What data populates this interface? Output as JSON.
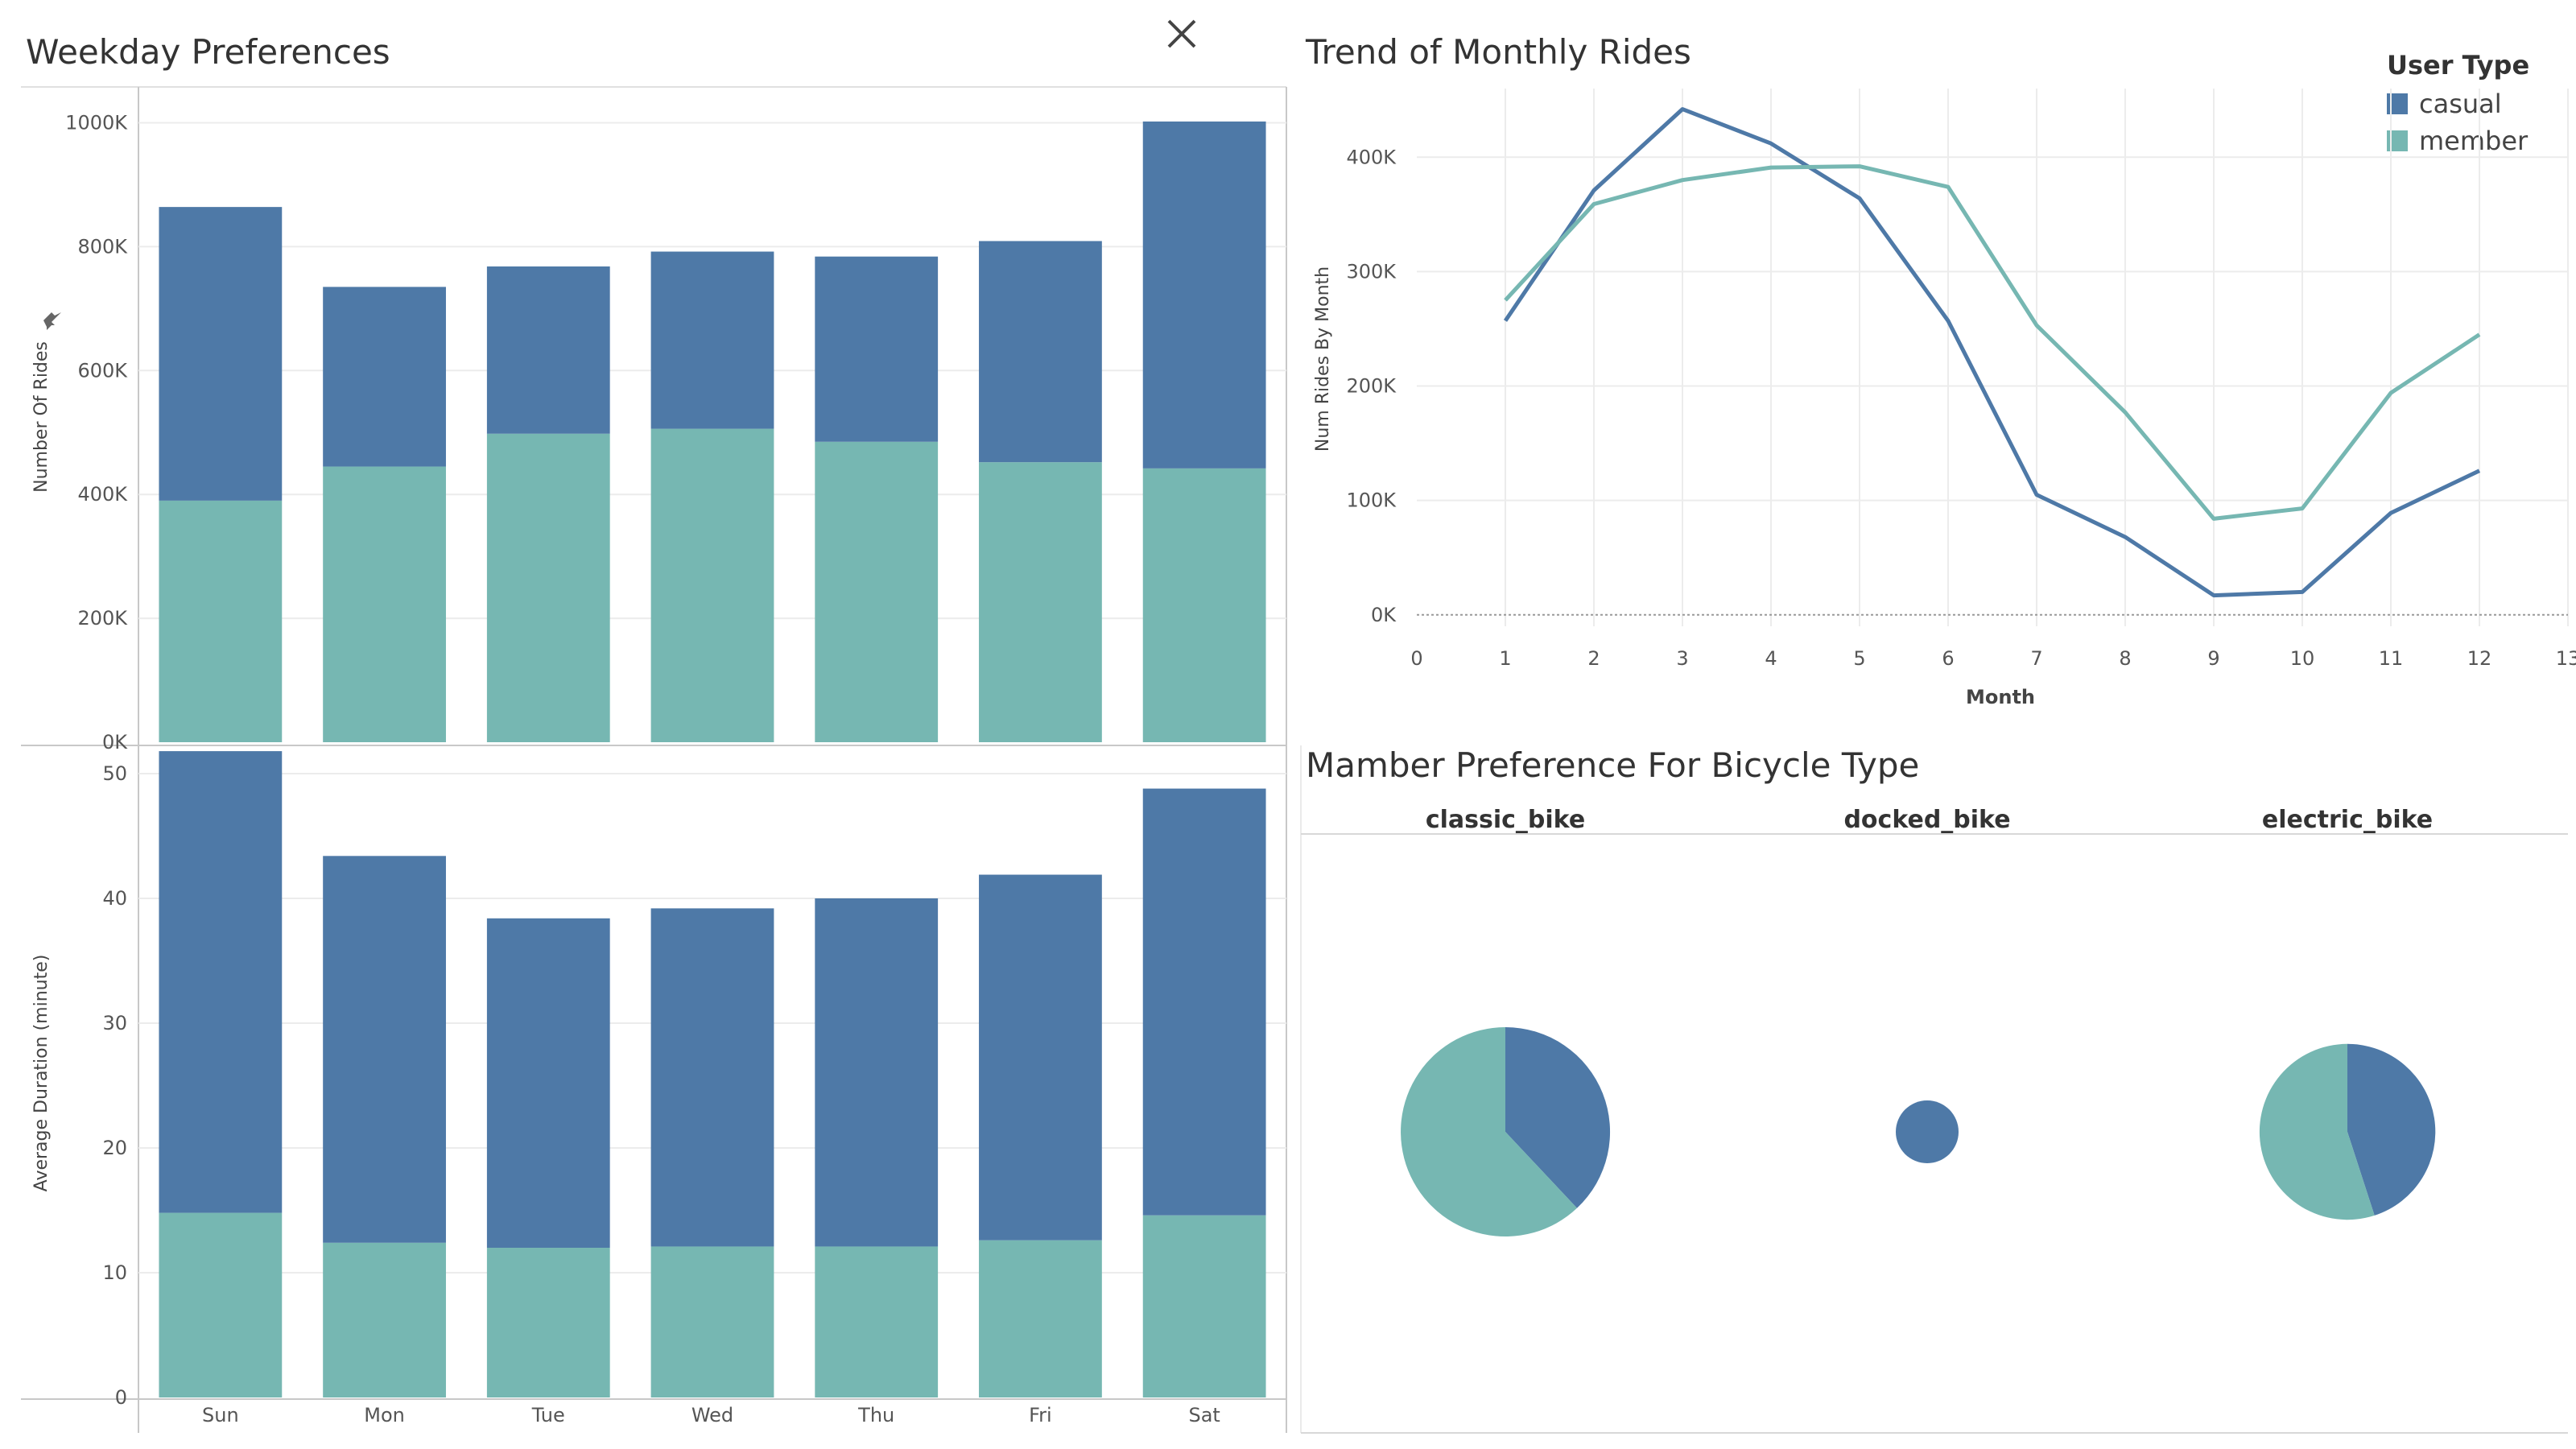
{
  "colors": {
    "casual": "#4e79a7",
    "member": "#76b7b2",
    "grid": "#ececec",
    "axis": "#c8c8c8",
    "text": "#555555"
  },
  "close_icon": "close-icon",
  "weekday": {
    "title": "Weekday Preferences"
  },
  "monthly": {
    "title": "Trend of Monthly Rides"
  },
  "pies": {
    "title": "Mamber Preference For Bicycle Type"
  },
  "legend": {
    "title": "User Type",
    "items": [
      {
        "label": "casual",
        "color": "#4e79a7"
      },
      {
        "label": "member",
        "color": "#76b7b2"
      }
    ]
  },
  "chart_data": [
    {
      "type": "bar",
      "stacked": true,
      "title": "Weekday Preferences",
      "categories": [
        "Sun",
        "Mon",
        "Tue",
        "Wed",
        "Thu",
        "Fri",
        "Sat"
      ],
      "ylabel": "Number Of Rides",
      "ylim": [
        0,
        1050000
      ],
      "yticks": [
        0,
        200000,
        400000,
        600000,
        800000,
        1000000
      ],
      "ytick_labels": [
        "0K",
        "200K",
        "400K",
        "600K",
        "800K",
        "1000K"
      ],
      "series": [
        {
          "name": "member",
          "values": [
            390000,
            445000,
            498000,
            506000,
            485000,
            452000,
            442000
          ]
        },
        {
          "name": "casual",
          "values": [
            474000,
            290000,
            270000,
            286000,
            299000,
            357000,
            560000
          ]
        }
      ]
    },
    {
      "type": "bar",
      "stacked": true,
      "categories": [
        "Sun",
        "Mon",
        "Tue",
        "Wed",
        "Thu",
        "Fri",
        "Sat"
      ],
      "ylabel": "Average Duration (minute)",
      "ylim": [
        0,
        52
      ],
      "yticks": [
        0,
        10,
        20,
        30,
        40,
        50
      ],
      "ytick_labels": [
        "0",
        "10",
        "20",
        "30",
        "40",
        "50"
      ],
      "series": [
        {
          "name": "member",
          "values": [
            14.8,
            12.4,
            12.0,
            12.1,
            12.1,
            12.6,
            14.6
          ]
        },
        {
          "name": "casual",
          "values": [
            37.0,
            31.0,
            26.4,
            27.1,
            27.9,
            29.3,
            34.2
          ]
        }
      ]
    },
    {
      "type": "line",
      "title": "Trend of Monthly Rides",
      "xlabel": "Month",
      "ylabel": "Num Rides By Month",
      "xlim": [
        0,
        13
      ],
      "xticks": [
        0,
        1,
        2,
        3,
        4,
        5,
        6,
        7,
        8,
        9,
        10,
        11,
        12,
        13
      ],
      "ylim": [
        -10000,
        460000
      ],
      "yticks": [
        0,
        100000,
        200000,
        300000,
        400000
      ],
      "ytick_labels": [
        "0K",
        "100K",
        "200K",
        "300K",
        "400K"
      ],
      "legend": "top-right",
      "x": [
        1,
        2,
        3,
        4,
        5,
        6,
        7,
        8,
        9,
        10,
        11,
        12
      ],
      "series": [
        {
          "name": "casual",
          "values": [
            257000,
            371000,
            442000,
            412000,
            364000,
            257000,
            105000,
            68000,
            17000,
            20000,
            89000,
            126000
          ]
        },
        {
          "name": "member",
          "values": [
            275000,
            359000,
            380000,
            391000,
            392000,
            374000,
            253000,
            177000,
            84000,
            93000,
            194000,
            245000
          ]
        }
      ]
    },
    {
      "type": "pie",
      "title": "Mamber Preference For Bicycle Type",
      "categories": [
        "classic_bike",
        "docked_bike",
        "electric_bike"
      ],
      "series": [
        {
          "name": "casual",
          "values": [
            0.38,
            1.0,
            0.45
          ]
        },
        {
          "name": "member",
          "values": [
            0.62,
            0.0,
            0.55
          ]
        }
      ],
      "relative_size": [
        1.0,
        0.3,
        0.84
      ]
    }
  ]
}
